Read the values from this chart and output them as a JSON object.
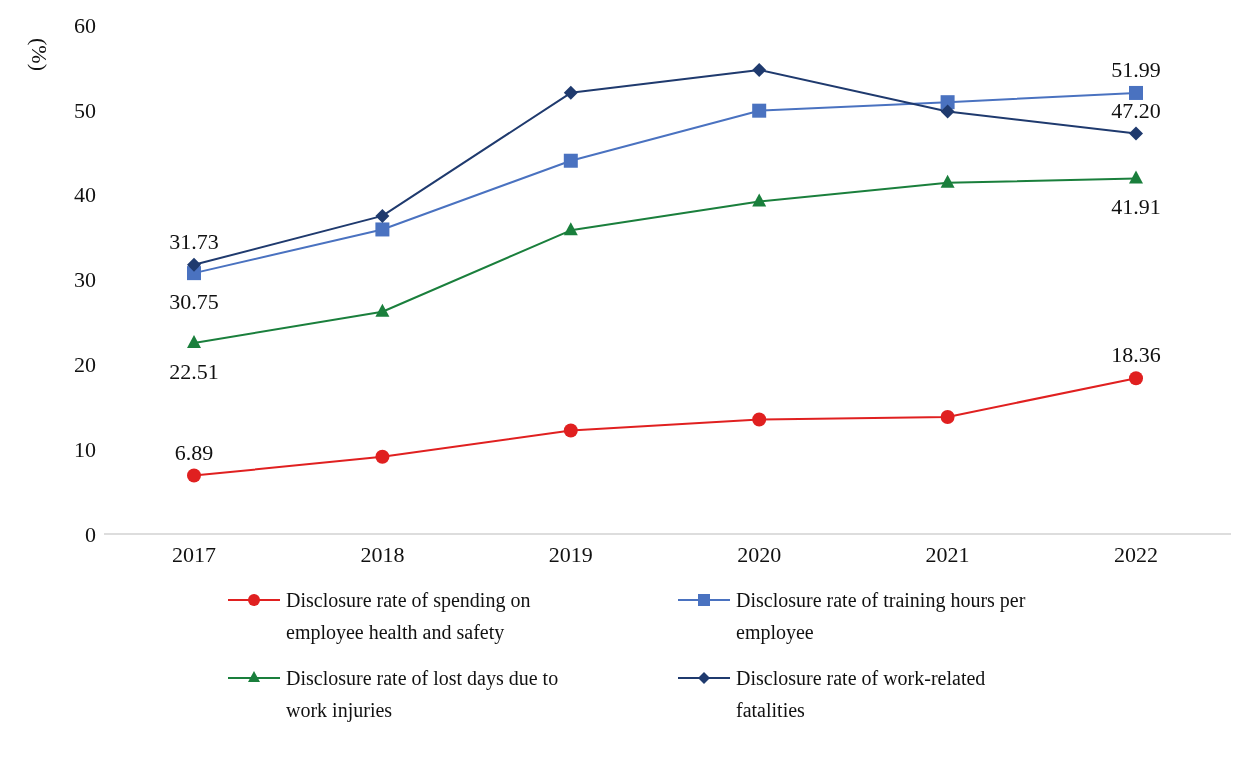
{
  "chart_data": {
    "type": "line",
    "ylabel": "(%)",
    "categories": [
      "2017",
      "2018",
      "2019",
      "2020",
      "2021",
      "2022"
    ],
    "ylim": [
      0,
      60
    ],
    "yticks": [
      0,
      10,
      20,
      30,
      40,
      50,
      60
    ],
    "grid": false,
    "legend": "bottom",
    "series": [
      {
        "name": "Disclosure rate of spending on employee health and safety",
        "color": "#e02020",
        "marker": "circle",
        "values": [
          6.89,
          9.1,
          12.2,
          13.5,
          13.8,
          18.36
        ],
        "value_labels": [
          "6.89",
          null,
          null,
          null,
          null,
          "18.36"
        ]
      },
      {
        "name": "Disclosure rate of training hours per employee",
        "color": "#4a72c0",
        "marker": "square",
        "values": [
          30.75,
          35.9,
          44.0,
          49.9,
          50.9,
          51.99
        ],
        "value_labels": [
          "30.75",
          null,
          null,
          null,
          null,
          "51.99"
        ]
      },
      {
        "name": "Disclosure rate of lost days due to work injuries",
        "color": "#1a7f3c",
        "marker": "triangle",
        "values": [
          22.51,
          26.2,
          35.8,
          39.2,
          41.4,
          41.91
        ],
        "value_labels": [
          "22.51",
          null,
          null,
          null,
          null,
          "41.91"
        ]
      },
      {
        "name": "Disclosure rate of work-related fatalities",
        "color": "#1f3a6e",
        "marker": "diamond",
        "values": [
          31.73,
          37.5,
          52.0,
          54.7,
          49.8,
          47.2
        ],
        "value_labels": [
          "31.73",
          null,
          null,
          null,
          null,
          "47.20"
        ]
      }
    ]
  }
}
